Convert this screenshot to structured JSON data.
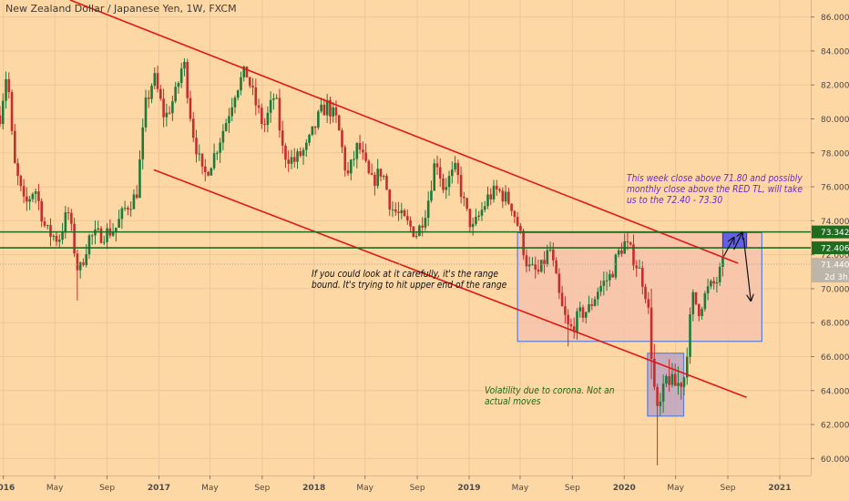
{
  "header": {
    "symbol_title": "New Zealand Dollar / Japanese Yen, 1W, FXCM"
  },
  "annotations": {
    "range_note": "If you could look at it carefully, it's the range bound. It's trying to hit upper end of the range",
    "corona_note": "Volatility due to corona. Not an actual moves",
    "weekly_note": "This week close above 71.80 and possibly monthly close above the RED TL, will take us to the 72.40 - 73.30"
  },
  "chart_data": {
    "type": "candlestick",
    "title": "New Zealand Dollar / Japanese Yen, 1W, FXCM",
    "x_range": [
      "2015-12-24",
      "2021-03-15"
    ],
    "ylim": [
      59.0,
      87.0
    ],
    "y_ticks": [
      60,
      62,
      64,
      66,
      68,
      70,
      72,
      74,
      76,
      78,
      80,
      82,
      84,
      86
    ],
    "y_tick_labels": [
      "60.000",
      "62.000",
      "64.000",
      "66.000",
      "68.000",
      "70.000",
      "72.000",
      "74.000",
      "76.000",
      "78.000",
      "80.000",
      "82.000",
      "84.000",
      "86.000"
    ],
    "x_ticks": [
      {
        "label": "2016",
        "date": "2016-01-01",
        "bold": true
      },
      {
        "label": "May",
        "date": "2016-05-01"
      },
      {
        "label": "Sep",
        "date": "2016-09-01"
      },
      {
        "label": "2017",
        "date": "2017-01-01",
        "bold": true
      },
      {
        "label": "May",
        "date": "2017-05-01"
      },
      {
        "label": "Sep",
        "date": "2017-09-01"
      },
      {
        "label": "2018",
        "date": "2018-01-01",
        "bold": true
      },
      {
        "label": "May",
        "date": "2018-05-01"
      },
      {
        "label": "Sep",
        "date": "2018-09-01"
      },
      {
        "label": "2019",
        "date": "2019-01-01",
        "bold": true
      },
      {
        "label": "May",
        "date": "2019-05-01"
      },
      {
        "label": "Sep",
        "date": "2019-09-01"
      },
      {
        "label": "2020",
        "date": "2020-01-01",
        "bold": true
      },
      {
        "label": "May",
        "date": "2020-05-01"
      },
      {
        "label": "Sep",
        "date": "2020-09-01"
      },
      {
        "label": "2021",
        "date": "2021-01-01",
        "bold": true
      }
    ],
    "price_path": [
      [
        "2015-12-24",
        80.2
      ],
      [
        "2016-01-10",
        83.0
      ],
      [
        "2016-01-25",
        77.5
      ],
      [
        "2016-02-20",
        74.8
      ],
      [
        "2016-03-15",
        76.0
      ],
      [
        "2016-04-10",
        73.4
      ],
      [
        "2016-05-10",
        72.9
      ],
      [
        "2016-06-01",
        74.6
      ],
      [
        "2016-06-26",
        70.8
      ],
      [
        "2016-07-20",
        73.0
      ],
      [
        "2016-08-20",
        73.2
      ],
      [
        "2016-09-20",
        73.5
      ],
      [
        "2016-10-15",
        74.8
      ],
      [
        "2016-11-09",
        75.5
      ],
      [
        "2016-12-01",
        80.8
      ],
      [
        "2016-12-20",
        82.5
      ],
      [
        "2017-01-15",
        80.0
      ],
      [
        "2017-02-10",
        81.5
      ],
      [
        "2017-02-28",
        83.5
      ],
      [
        "2017-03-20",
        79.5
      ],
      [
        "2017-04-15",
        76.5
      ],
      [
        "2017-05-10",
        77.8
      ],
      [
        "2017-06-10",
        80.0
      ],
      [
        "2017-07-01",
        81.8
      ],
      [
        "2017-07-25",
        82.8
      ],
      [
        "2017-08-15",
        81.0
      ],
      [
        "2017-09-05",
        79.5
      ],
      [
        "2017-10-01",
        81.5
      ],
      [
        "2017-10-20",
        78.0
      ],
      [
        "2017-11-15",
        77.5
      ],
      [
        "2017-12-15",
        78.3
      ],
      [
        "2018-01-15",
        80.3
      ],
      [
        "2018-02-01",
        80.8
      ],
      [
        "2018-02-25",
        79.8
      ],
      [
        "2018-03-20",
        76.5
      ],
      [
        "2018-04-15",
        78.5
      ],
      [
        "2018-05-15",
        76.2
      ],
      [
        "2018-06-10",
        77.0
      ],
      [
        "2018-07-01",
        74.8
      ],
      [
        "2018-08-01",
        74.0
      ],
      [
        "2018-09-01",
        73.2
      ],
      [
        "2018-09-25",
        75.0
      ],
      [
        "2018-10-15",
        77.8
      ],
      [
        "2018-11-01",
        76.0
      ],
      [
        "2018-12-01",
        77.0
      ],
      [
        "2018-12-25",
        74.5
      ],
      [
        "2019-01-10",
        73.5
      ],
      [
        "2019-02-15",
        75.4
      ],
      [
        "2019-03-10",
        75.8
      ],
      [
        "2019-04-10",
        75.0
      ],
      [
        "2019-04-25",
        73.8
      ],
      [
        "2019-05-20",
        71.2
      ],
      [
        "2019-06-15",
        70.9
      ],
      [
        "2019-07-10",
        72.4
      ],
      [
        "2019-08-05",
        69.0
      ],
      [
        "2019-08-25",
        67.5
      ],
      [
        "2019-09-20",
        68.5
      ],
      [
        "2019-10-10",
        68.8
      ],
      [
        "2019-11-01",
        70.0
      ],
      [
        "2019-12-01",
        70.8
      ],
      [
        "2019-12-15",
        71.9
      ],
      [
        "2020-01-01",
        72.7
      ],
      [
        "2020-01-20",
        72.0
      ],
      [
        "2020-02-10",
        70.8
      ],
      [
        "2020-02-25",
        69.3
      ],
      [
        "2020-03-10",
        64.5
      ],
      [
        "2020-03-20",
        62.5
      ],
      [
        "2020-04-10",
        64.8
      ],
      [
        "2020-04-30",
        64.3
      ],
      [
        "2020-05-20",
        64.6
      ],
      [
        "2020-06-10",
        69.5
      ],
      [
        "2020-06-25",
        68.8
      ],
      [
        "2020-07-15",
        69.9
      ],
      [
        "2020-08-05",
        70.4
      ],
      [
        "2020-08-20",
        71.4
      ]
    ],
    "levels": [
      {
        "name": "upper-green-line",
        "value": 73.342,
        "label": "73.342",
        "color": "#1f6b1f"
      },
      {
        "name": "lower-green-line",
        "value": 72.406,
        "label": "72.406",
        "color": "#1f6b1f"
      },
      {
        "name": "last-price",
        "value": 71.44,
        "label": "71.440",
        "color": "#8c8c8c"
      }
    ],
    "last_price_countdown": "2d 3h",
    "trendlines": [
      {
        "name": "upper-red-trendline",
        "points": [
          [
            "2016-06-06",
            87.0
          ],
          [
            "2020-09-25",
            71.5
          ]
        ],
        "color": "#e01818"
      },
      {
        "name": "lower-red-trendline",
        "points": [
          [
            "2016-12-20",
            77.0
          ],
          [
            "2020-10-15",
            63.6
          ]
        ],
        "color": "#e01818"
      }
    ],
    "zones": [
      {
        "name": "range-box",
        "x0": "2019-04-25",
        "x1": "2020-11-20",
        "y0": 66.9,
        "y1": 73.3,
        "fill": "#f5c2ad",
        "stroke": "#5b7dd6"
      },
      {
        "name": "corona-box",
        "x0": "2020-02-25",
        "x1": "2020-05-20",
        "y0": 62.5,
        "y1": 66.2,
        "fill": "#b49ec6",
        "stroke": "#5b7dd6"
      },
      {
        "name": "target-box",
        "x0": "2020-08-20",
        "x1": "2020-10-15",
        "y0": 72.4,
        "y1": 73.3,
        "fill": "#5b5ce6",
        "stroke": "#3434c8"
      }
    ],
    "arrows": [
      {
        "name": "arrow-up-1",
        "from": [
          "2020-08-22",
          71.9
        ],
        "to": [
          "2020-09-15",
          73.0
        ]
      },
      {
        "name": "arrow-up-2",
        "from": [
          "2020-09-15",
          72.3
        ],
        "to": [
          "2020-10-05",
          73.3
        ]
      },
      {
        "name": "arrow-down",
        "from": [
          "2020-10-08",
          73.0
        ],
        "to": [
          "2020-10-25",
          69.3
        ]
      }
    ],
    "colors": {
      "up": "#1f7a3a",
      "down": "#c62d2d",
      "background": "#fdd7a4"
    }
  }
}
